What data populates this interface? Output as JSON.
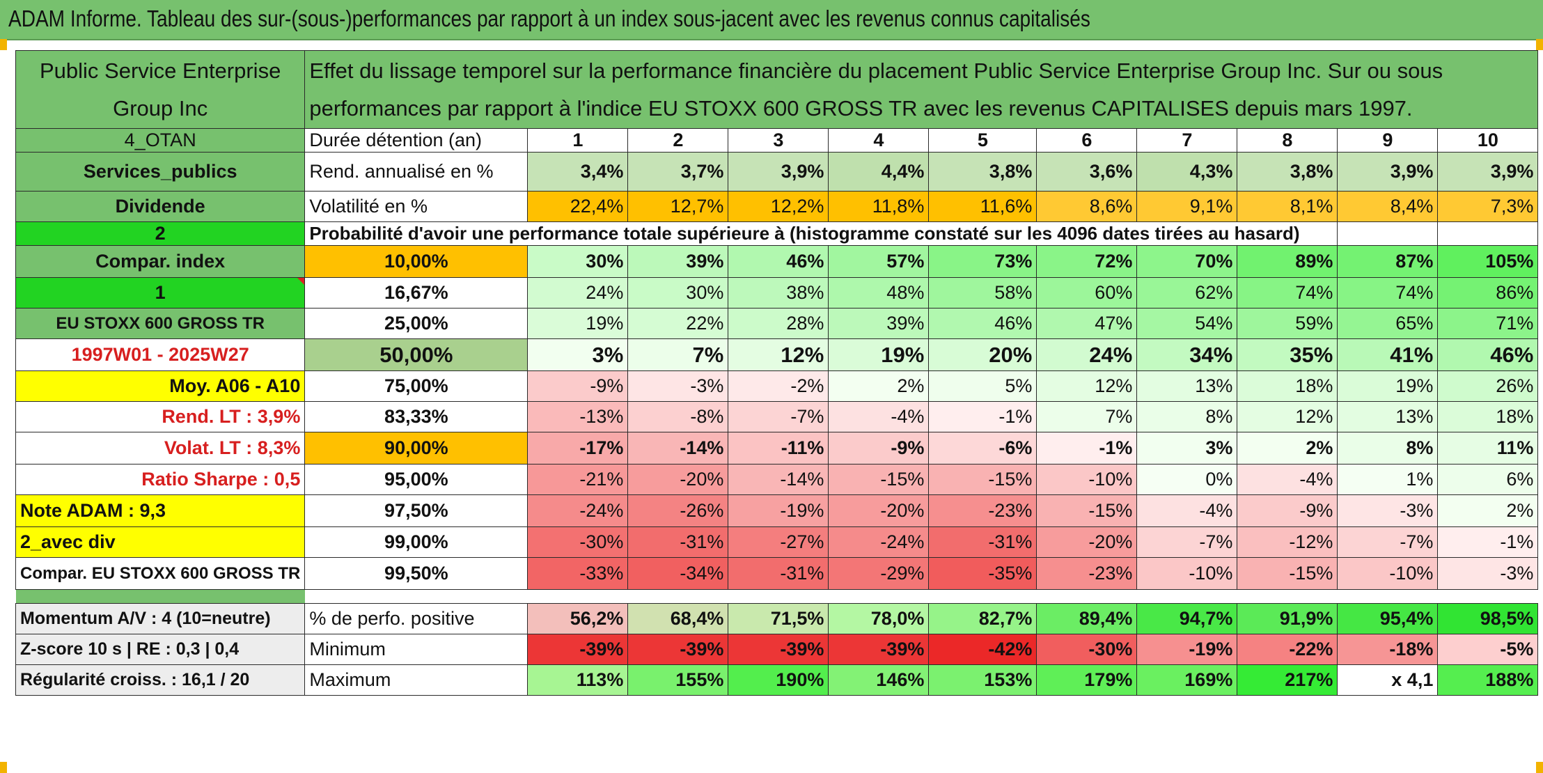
{
  "title": "ADAM Informe. Tableau des sur-(sous-)performances par rapport à un index sous-jacent avec les revenus connus capitalisés",
  "company": "Public Service Enterprise Group Inc",
  "description": "Effet du lissage temporel sur la performance financière du placement Public Service Enterprise Group Inc. Sur ou sous performances par rapport à l'indice EU STOXX 600 GROSS TR avec les revenus CAPITALISES depuis mars 1997.",
  "left": {
    "otan": "4_OTAN",
    "sector": "Services_publics",
    "dividende": "Dividende",
    "val2": "2",
    "compar_index": "Compar. index",
    "val1": "1",
    "index_name": "EU STOXX 600 GROSS TR",
    "period": "1997W01 - 2025W27",
    "moy": "Moy. A06 - A10",
    "rend_lt": "Rend. LT :   3,9%",
    "volat_lt": "Volat. LT :   8,3%",
    "sharpe": "Ratio Sharpe :   0,5",
    "note": "Note ADAM : 9,3",
    "avec_div": "2_avec div",
    "compar_full": "Compar. EU STOXX 600 GROSS TR",
    "momentum": "Momentum A/V : 4 (10=neutre)",
    "zscore": "Z-score 10 s | RE : 0,3 | 0,4",
    "regularite": "Régularité croiss. : 16,1 / 20"
  },
  "labels": {
    "duree": "Durée détention (an)",
    "rend": "Rend. annualisé en %",
    "volat": "Volatilité en %",
    "proba": "Probabilité d'avoir une performance totale supérieure à (histogramme constaté sur les 4096 dates tirées au hasard)",
    "positive": "% de perfo. positive",
    "minimum": "Minimum",
    "maximum": "Maximum"
  },
  "years": [
    "1",
    "2",
    "3",
    "4",
    "5",
    "6",
    "7",
    "8",
    "9",
    "10"
  ],
  "rend": [
    "3,4%",
    "3,7%",
    "3,9%",
    "4,4%",
    "3,8%",
    "3,6%",
    "4,3%",
    "3,8%",
    "3,9%",
    "3,9%"
  ],
  "volat": [
    "22,4%",
    "12,7%",
    "12,2%",
    "11,8%",
    "11,6%",
    "8,6%",
    "9,1%",
    "8,1%",
    "8,4%",
    "7,3%"
  ],
  "prob_rows": [
    {
      "threshold": "10,00%",
      "values": [
        "30%",
        "39%",
        "46%",
        "57%",
        "73%",
        "72%",
        "70%",
        "89%",
        "87%",
        "105%"
      ]
    },
    {
      "threshold": "16,67%",
      "values": [
        "24%",
        "30%",
        "38%",
        "48%",
        "58%",
        "60%",
        "62%",
        "74%",
        "74%",
        "86%"
      ]
    },
    {
      "threshold": "25,00%",
      "values": [
        "19%",
        "22%",
        "28%",
        "39%",
        "46%",
        "47%",
        "54%",
        "59%",
        "65%",
        "71%"
      ]
    },
    {
      "threshold": "50,00%",
      "values": [
        "3%",
        "7%",
        "12%",
        "19%",
        "20%",
        "24%",
        "34%",
        "35%",
        "41%",
        "46%"
      ]
    },
    {
      "threshold": "75,00%",
      "values": [
        "-9%",
        "-3%",
        "-2%",
        "2%",
        "5%",
        "12%",
        "13%",
        "18%",
        "19%",
        "26%"
      ]
    },
    {
      "threshold": "83,33%",
      "values": [
        "-13%",
        "-8%",
        "-7%",
        "-4%",
        "-1%",
        "7%",
        "8%",
        "12%",
        "13%",
        "18%"
      ]
    },
    {
      "threshold": "90,00%",
      "values": [
        "-17%",
        "-14%",
        "-11%",
        "-9%",
        "-6%",
        "-1%",
        "3%",
        "2%",
        "8%",
        "11%"
      ]
    },
    {
      "threshold": "95,00%",
      "values": [
        "-21%",
        "-20%",
        "-14%",
        "-15%",
        "-15%",
        "-10%",
        "0%",
        "-4%",
        "1%",
        "6%"
      ]
    },
    {
      "threshold": "97,50%",
      "values": [
        "-24%",
        "-26%",
        "-19%",
        "-20%",
        "-23%",
        "-15%",
        "-4%",
        "-9%",
        "-3%",
        "2%"
      ]
    },
    {
      "threshold": "99,00%",
      "values": [
        "-30%",
        "-31%",
        "-27%",
        "-24%",
        "-31%",
        "-20%",
        "-7%",
        "-12%",
        "-7%",
        "-1%"
      ]
    },
    {
      "threshold": "99,50%",
      "values": [
        "-33%",
        "-34%",
        "-31%",
        "-29%",
        "-35%",
        "-23%",
        "-10%",
        "-15%",
        "-10%",
        "-3%"
      ]
    }
  ],
  "positive": [
    "56,2%",
    "68,4%",
    "71,5%",
    "78,0%",
    "82,7%",
    "89,4%",
    "94,7%",
    "91,9%",
    "95,4%",
    "98,5%"
  ],
  "minimum": [
    "-39%",
    "-39%",
    "-39%",
    "-39%",
    "-42%",
    "-30%",
    "-19%",
    "-22%",
    "-18%",
    "-5%"
  ],
  "maximum": [
    "113%",
    "155%",
    "190%",
    "146%",
    "153%",
    "179%",
    "169%",
    "217%",
    "x 4,1",
    "188%"
  ],
  "colors": {
    "header_green": "#77c16e",
    "light_green": "#c6e3b6",
    "bright_green": "#22d322",
    "yellow": "#ffff00",
    "orange": "#ffc000",
    "red_text": "#d71f1f"
  }
}
